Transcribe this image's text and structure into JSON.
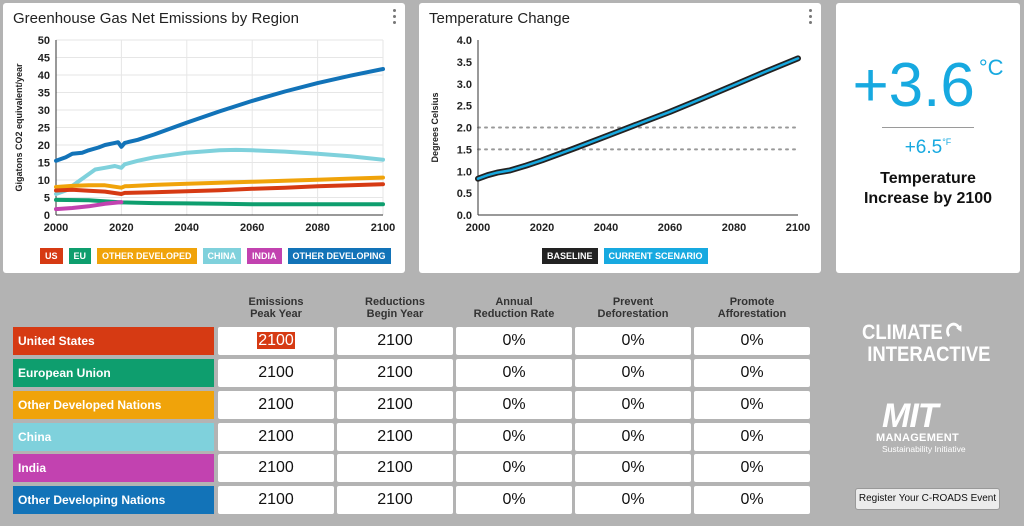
{
  "ghg_panel": {
    "title": "Greenhouse Gas Net Emissions by Region",
    "legend": [
      {
        "label": "US",
        "color": "#d63a13"
      },
      {
        "label": "EU",
        "color": "#0e9e6e"
      },
      {
        "label": "OTHER DEVELOPED",
        "color": "#f0a30a"
      },
      {
        "label": "CHINA",
        "color": "#7fd1dc"
      },
      {
        "label": "INDIA",
        "color": "#c242b0"
      },
      {
        "label": "OTHER DEVELOPING",
        "color": "#1273b8"
      }
    ]
  },
  "temp_panel": {
    "title": "Temperature Change",
    "legend": [
      {
        "label": "BASELINE",
        "color": "#222222"
      },
      {
        "label": "CURRENT SCENARIO",
        "color": "#17a9e0"
      }
    ]
  },
  "increase_panel": {
    "value": "+3.6",
    "unit": "°C",
    "value_f": "+6.5",
    "unit_f": "°F",
    "label": "Temperature Increase by 2100"
  },
  "table": {
    "headers": [
      "Emissions Peak Year",
      "Reductions Begin Year",
      "Annual Reduction Rate",
      "Prevent Deforestation",
      "Promote Afforestation"
    ],
    "rows": [
      {
        "name": "United States",
        "color": "#d63a13",
        "values": [
          "2100",
          "2100",
          "0%",
          "0%",
          "0%"
        ]
      },
      {
        "name": "European Union",
        "color": "#0e9e6e",
        "values": [
          "2100",
          "2100",
          "0%",
          "0%",
          "0%"
        ]
      },
      {
        "name": "Other Developed Nations",
        "color": "#f0a30a",
        "values": [
          "2100",
          "2100",
          "0%",
          "0%",
          "0%"
        ]
      },
      {
        "name": "China",
        "color": "#7fd1dc",
        "values": [
          "2100",
          "2100",
          "0%",
          "0%",
          "0%"
        ]
      },
      {
        "name": "India",
        "color": "#c242b0",
        "values": [
          "2100",
          "2100",
          "0%",
          "0%",
          "0%"
        ]
      },
      {
        "name": "Other Developing Nations",
        "color": "#1273b8",
        "values": [
          "2100",
          "2100",
          "0%",
          "0%",
          "0%"
        ]
      }
    ]
  },
  "logos": {
    "ci_line1": "CLIMATE",
    "ci_line2": "INTERACTIVE",
    "mit_line1": "MIT",
    "mit_line2": "MANAGEMENT",
    "mit_line3": "Sustainability Initiative"
  },
  "register_button": "Register Your C-ROADS Event",
  "chart_data": [
    {
      "type": "line",
      "title": "Greenhouse Gas Net Emissions by Region",
      "xlabel": "",
      "ylabel": "Gigatons CO2 equivalent/year",
      "xlim": [
        2000,
        2100
      ],
      "ylim": [
        0,
        50
      ],
      "xticks": [
        2000,
        2020,
        2040,
        2060,
        2080,
        2100
      ],
      "yticks": [
        0,
        5,
        10,
        15,
        20,
        25,
        30,
        35,
        40,
        45,
        50
      ],
      "grid": true,
      "legend_position": "bottom",
      "series": [
        {
          "name": "OTHER DEVELOPING",
          "color": "#1273b8",
          "x": [
            2000,
            2003,
            2005,
            2008,
            2010,
            2013,
            2015,
            2018,
            2019,
            2020,
            2021,
            2025,
            2030,
            2040,
            2050,
            2060,
            2070,
            2080,
            2090,
            2100
          ],
          "y": [
            15.5,
            16.5,
            17.5,
            17.8,
            18.5,
            19.3,
            20,
            20.6,
            20.8,
            19.5,
            20.6,
            21.5,
            23,
            26.4,
            29.6,
            32.6,
            35.3,
            37.7,
            39.8,
            41.7
          ]
        },
        {
          "name": "CHINA",
          "color": "#7fd1dc",
          "x": [
            2000,
            2003,
            2006,
            2009,
            2012,
            2015,
            2018,
            2020,
            2021,
            2025,
            2030,
            2040,
            2050,
            2055,
            2060,
            2070,
            2080,
            2090,
            2100
          ],
          "y": [
            6,
            7,
            9,
            11,
            13,
            13.5,
            14,
            13.5,
            14.5,
            15.5,
            16.5,
            17.8,
            18.5,
            18.6,
            18.5,
            18.1,
            17.5,
            16.8,
            15.8
          ]
        },
        {
          "name": "OTHER DEVELOPED",
          "color": "#f0a30a",
          "x": [
            2000,
            2005,
            2010,
            2015,
            2020,
            2021,
            2030,
            2040,
            2050,
            2060,
            2070,
            2080,
            2090,
            2100
          ],
          "y": [
            8,
            8.3,
            8.5,
            8.5,
            7.8,
            8.2,
            8.6,
            8.9,
            9.2,
            9.5,
            9.8,
            10.1,
            10.4,
            10.7
          ]
        },
        {
          "name": "US",
          "color": "#d63a13",
          "x": [
            2000,
            2005,
            2010,
            2015,
            2020,
            2021,
            2030,
            2040,
            2050,
            2060,
            2070,
            2080,
            2090,
            2100
          ],
          "y": [
            7,
            7.2,
            6.9,
            6.7,
            6,
            6.3,
            6.5,
            6.8,
            7.1,
            7.5,
            7.8,
            8.2,
            8.5,
            8.8
          ]
        },
        {
          "name": "EU",
          "color": "#0e9e6e",
          "x": [
            2000,
            2010,
            2020,
            2030,
            2040,
            2050,
            2060,
            2070,
            2080,
            2090,
            2100
          ],
          "y": [
            4.3,
            4.2,
            3.6,
            3.4,
            3.3,
            3.2,
            3.1,
            3.1,
            3.1,
            3.1,
            3.1
          ]
        },
        {
          "name": "INDIA",
          "color": "#c242b0",
          "x": [
            2000,
            2005,
            2010,
            2015,
            2020
          ],
          "y": [
            1.7,
            2.0,
            2.5,
            3.2,
            3.7
          ]
        }
      ]
    },
    {
      "type": "line",
      "title": "Temperature Change",
      "xlabel": "",
      "ylabel": "Degrees Celsius",
      "xlim": [
        2000,
        2100
      ],
      "ylim": [
        0,
        4
      ],
      "xticks": [
        2000,
        2020,
        2040,
        2060,
        2080,
        2100
      ],
      "yticks": [
        0.0,
        0.5,
        1.0,
        1.5,
        2.0,
        2.5,
        3.0,
        3.5,
        4.0
      ],
      "reference_lines": [
        1.5,
        2.0
      ],
      "grid": false,
      "legend_position": "bottom",
      "series": [
        {
          "name": "BASELINE",
          "color": "#222222",
          "x": [
            2000,
            2003,
            2006,
            2010,
            2015,
            2020,
            2030,
            2040,
            2050,
            2060,
            2070,
            2080,
            2090,
            2100
          ],
          "y": [
            0.83,
            0.91,
            0.97,
            1.02,
            1.13,
            1.25,
            1.52,
            1.8,
            2.08,
            2.36,
            2.66,
            2.97,
            3.28,
            3.58
          ]
        },
        {
          "name": "CURRENT SCENARIO",
          "color": "#17a9e0",
          "x": [
            2000,
            2003,
            2006,
            2010,
            2015,
            2020,
            2030,
            2040,
            2050,
            2060,
            2070,
            2080,
            2090,
            2100
          ],
          "y": [
            0.83,
            0.91,
            0.97,
            1.02,
            1.13,
            1.25,
            1.52,
            1.8,
            2.08,
            2.36,
            2.66,
            2.97,
            3.28,
            3.58
          ]
        }
      ]
    }
  ]
}
